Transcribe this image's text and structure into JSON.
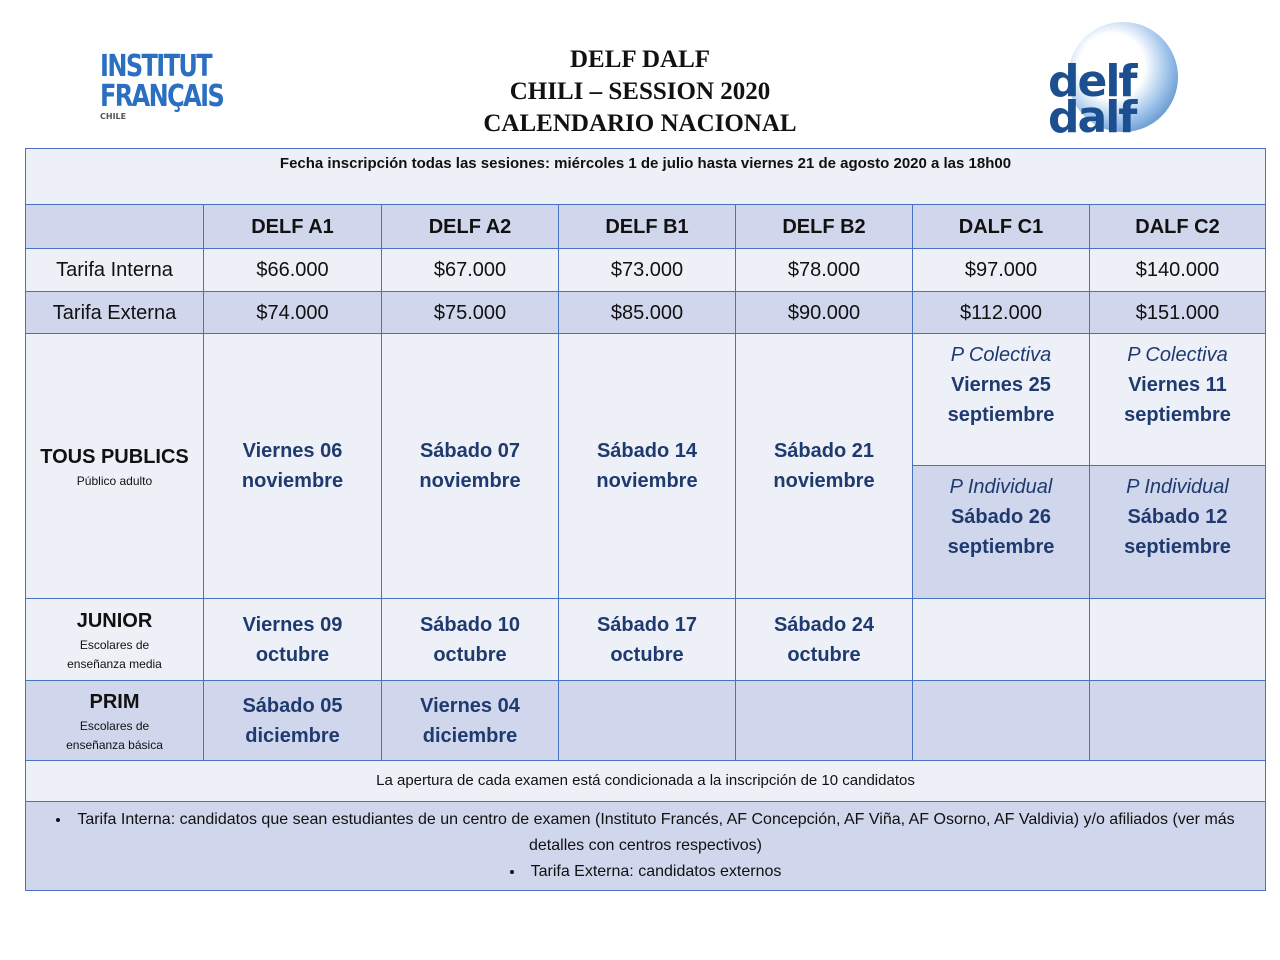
{
  "header": {
    "title_lines": [
      "DELF DALF",
      "CHILI – SESSION 2020",
      "CALENDARIO NACIONAL"
    ],
    "logo_left": {
      "line1": "INSTITUT",
      "line2": "FRANÇAIS",
      "line3": "CHILE"
    },
    "logo_right": {
      "line1": "delf",
      "line2": "dalf"
    }
  },
  "table": {
    "notice": "Fecha inscripción todas las sesiones: miércoles 1 de julio hasta viernes 21 de agosto 2020 a las 18h00",
    "columns": [
      "DELF A1",
      "DELF A2",
      "DELF B1",
      "DELF B2",
      "DALF C1",
      "DALF C2"
    ],
    "fees": [
      {
        "label": "Tarifa Interna",
        "cells": [
          "$66.000",
          "$67.000",
          "$73.000",
          "$78.000",
          "$97.000",
          "$140.000"
        ]
      },
      {
        "label": "Tarifa Externa",
        "cells": [
          "$74.000",
          "$75.000",
          "$85.000",
          "$90.000",
          "$112.000",
          "$151.000"
        ]
      }
    ],
    "tous_publics": {
      "label": "TOUS PUBLICS",
      "sublabel_lines": [
        "Público adulto"
      ],
      "dates": [
        {
          "day": "Viernes 06",
          "month": "noviembre"
        },
        {
          "day": "Sábado 07",
          "month": "noviembre"
        },
        {
          "day": "Sábado 14",
          "month": "noviembre"
        },
        {
          "day": "Sábado 21",
          "month": "noviembre"
        }
      ],
      "dalf": [
        [
          {
            "session": "P Colectiva",
            "day": "Viernes 25",
            "month": "septiembre"
          },
          {
            "session": "P Individual",
            "day": "Sábado 26",
            "month": "septiembre"
          }
        ],
        [
          {
            "session": "P Colectiva",
            "day": "Viernes 11",
            "month": "septiembre"
          },
          {
            "session": "P Individual",
            "day": "Sábado 12",
            "month": "septiembre"
          }
        ]
      ]
    },
    "junior": {
      "label": "JUNIOR",
      "sublabel_lines": [
        "Escolares de",
        "enseñanza media"
      ],
      "dates": [
        {
          "day": "Viernes 09",
          "month": "octubre"
        },
        {
          "day": "Sábado 10",
          "month": "octubre"
        },
        {
          "day": "Sábado 17",
          "month": "octubre"
        },
        {
          "day": "Sábado 24",
          "month": "octubre"
        }
      ]
    },
    "prim": {
      "label": "PRIM",
      "sublabel_lines": [
        "Escolares de",
        "enseñanza básica"
      ],
      "dates": [
        {
          "day": "Sábado 05",
          "month": "diciembre"
        },
        {
          "day": "Viernes 04",
          "month": "diciembre"
        }
      ]
    },
    "condition": "La apertura de cada examen está condicionada a la inscripción de 10 candidatos",
    "notes": [
      "Tarifa Interna: candidatos que sean estudiantes de un centro de examen (Instituto Francés, AF Concepción, AF Viña, AF Osorno, AF Valdivia) y/o afiliados (ver más detalles con centros respectivos)",
      "Tarifa Externa: candidatos externos"
    ]
  }
}
